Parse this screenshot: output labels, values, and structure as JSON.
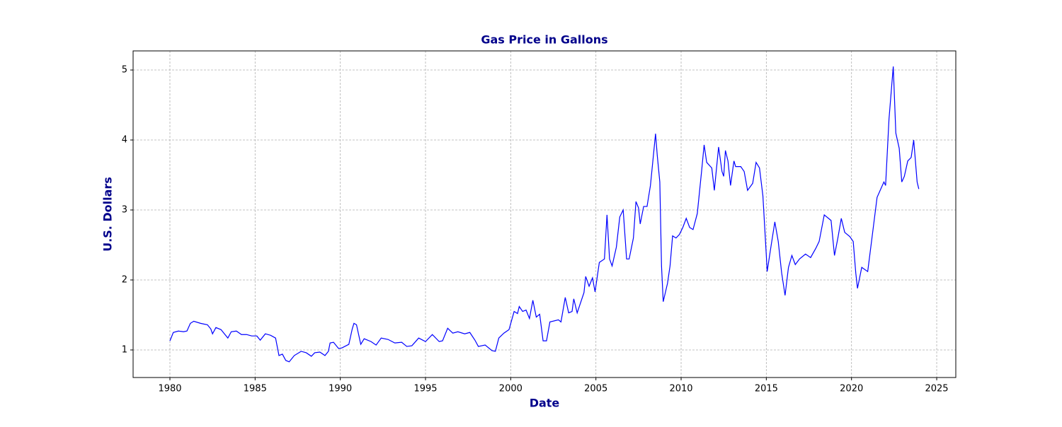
{
  "chart_data": {
    "type": "line",
    "title": "Gas Price in Gallons",
    "xlabel": "Date",
    "ylabel": "U.S. Dollars",
    "color": "#0000ff",
    "label_color": "#00008b",
    "grid": true,
    "x": [
      1980.0,
      1980.2,
      1980.5,
      1980.8,
      1981.0,
      1981.2,
      1981.4,
      1981.8,
      1982.2,
      1982.4,
      1982.5,
      1982.7,
      1983.0,
      1983.2,
      1983.4,
      1983.6,
      1983.9,
      1984.2,
      1984.5,
      1984.8,
      1985.1,
      1985.3,
      1985.6,
      1985.9,
      1986.2,
      1986.4,
      1986.6,
      1986.8,
      1987.0,
      1987.3,
      1987.7,
      1988.0,
      1988.3,
      1988.5,
      1988.8,
      1989.1,
      1989.3,
      1989.4,
      1989.6,
      1989.9,
      1990.1,
      1990.5,
      1990.7,
      1990.8,
      1990.95,
      1991.2,
      1991.4,
      1991.8,
      1992.1,
      1992.4,
      1992.8,
      1993.2,
      1993.6,
      1993.9,
      1994.2,
      1994.6,
      1995.0,
      1995.4,
      1995.8,
      1996.0,
      1996.3,
      1996.6,
      1996.9,
      1997.3,
      1997.6,
      1997.9,
      1998.1,
      1998.5,
      1998.9,
      1999.1,
      1999.3,
      1999.6,
      1999.9,
      2000.2,
      2000.4,
      2000.5,
      2000.7,
      2000.9,
      2001.1,
      2001.3,
      2001.5,
      2001.7,
      2001.9,
      2002.1,
      2002.3,
      2002.8,
      2002.95,
      2003.2,
      2003.4,
      2003.6,
      2003.7,
      2003.9,
      2004.3,
      2004.4,
      2004.6,
      2004.8,
      2004.95,
      2005.2,
      2005.5,
      2005.65,
      2005.8,
      2005.95,
      2006.2,
      2006.4,
      2006.6,
      2006.8,
      2006.95,
      2007.2,
      2007.35,
      2007.5,
      2007.6,
      2007.8,
      2008.0,
      2008.2,
      2008.5,
      2008.6,
      2008.75,
      2008.85,
      2008.95,
      2009.2,
      2009.35,
      2009.5,
      2009.7,
      2009.9,
      2010.1,
      2010.3,
      2010.5,
      2010.7,
      2010.95,
      2011.2,
      2011.35,
      2011.5,
      2011.8,
      2011.95,
      2012.2,
      2012.4,
      2012.5,
      2012.6,
      2012.75,
      2012.9,
      2013.1,
      2013.2,
      2013.5,
      2013.7,
      2013.9,
      2014.2,
      2014.4,
      2014.6,
      2014.8,
      2015.0,
      2015.05,
      2015.3,
      2015.5,
      2015.7,
      2015.9,
      2016.1,
      2016.3,
      2016.5,
      2016.7,
      2016.95,
      2017.3,
      2017.6,
      2017.9,
      2018.1,
      2018.4,
      2018.8,
      2019.0,
      2019.2,
      2019.4,
      2019.6,
      2019.9,
      2020.1,
      2020.25,
      2020.35,
      2020.6,
      2020.95,
      2021.2,
      2021.5,
      2021.9,
      2022.0,
      2022.2,
      2022.45,
      2022.6,
      2022.8,
      2022.95,
      2023.1,
      2023.3,
      2023.5,
      2023.65,
      2023.85,
      2023.95
    ],
    "values": [
      1.13,
      1.25,
      1.27,
      1.26,
      1.27,
      1.38,
      1.41,
      1.38,
      1.36,
      1.3,
      1.23,
      1.32,
      1.29,
      1.23,
      1.17,
      1.26,
      1.27,
      1.22,
      1.22,
      1.2,
      1.2,
      1.14,
      1.23,
      1.21,
      1.17,
      0.92,
      0.94,
      0.85,
      0.83,
      0.92,
      0.98,
      0.96,
      0.91,
      0.96,
      0.97,
      0.92,
      0.98,
      1.1,
      1.11,
      1.02,
      1.03,
      1.08,
      1.3,
      1.38,
      1.36,
      1.08,
      1.16,
      1.12,
      1.07,
      1.17,
      1.15,
      1.1,
      1.11,
      1.05,
      1.06,
      1.17,
      1.12,
      1.22,
      1.12,
      1.13,
      1.31,
      1.24,
      1.26,
      1.23,
      1.25,
      1.14,
      1.05,
      1.07,
      0.99,
      0.98,
      1.17,
      1.24,
      1.29,
      1.55,
      1.52,
      1.62,
      1.55,
      1.57,
      1.45,
      1.71,
      1.47,
      1.51,
      1.13,
      1.13,
      1.4,
      1.43,
      1.4,
      1.75,
      1.53,
      1.55,
      1.73,
      1.53,
      1.82,
      2.05,
      1.91,
      2.03,
      1.83,
      2.25,
      2.3,
      2.93,
      2.3,
      2.2,
      2.47,
      2.9,
      3.0,
      2.3,
      2.3,
      2.6,
      3.12,
      3.03,
      2.8,
      3.05,
      3.05,
      3.35,
      4.09,
      3.78,
      3.4,
      2.2,
      1.69,
      1.95,
      2.2,
      2.63,
      2.6,
      2.65,
      2.75,
      2.88,
      2.75,
      2.72,
      2.95,
      3.55,
      3.93,
      3.68,
      3.6,
      3.28,
      3.9,
      3.55,
      3.48,
      3.85,
      3.7,
      3.35,
      3.7,
      3.62,
      3.62,
      3.55,
      3.28,
      3.38,
      3.68,
      3.6,
      3.2,
      2.35,
      2.12,
      2.52,
      2.83,
      2.55,
      2.1,
      1.78,
      2.18,
      2.35,
      2.22,
      2.3,
      2.37,
      2.32,
      2.45,
      2.55,
      2.93,
      2.85,
      2.35,
      2.6,
      2.88,
      2.68,
      2.62,
      2.55,
      2.1,
      1.88,
      2.18,
      2.12,
      2.6,
      3.18,
      3.4,
      3.35,
      4.3,
      5.05,
      4.1,
      3.88,
      3.4,
      3.48,
      3.7,
      3.75,
      4.0,
      3.4,
      3.3
    ],
    "xlim": [
      1977.84,
      2026.12
    ],
    "xticks": [
      1980,
      1985,
      1990,
      1995,
      2000,
      2005,
      2010,
      2015,
      2020,
      2025
    ],
    "ylim": [
      0.606,
      5.273
    ],
    "yticks": [
      1,
      2,
      3,
      4,
      5
    ]
  }
}
